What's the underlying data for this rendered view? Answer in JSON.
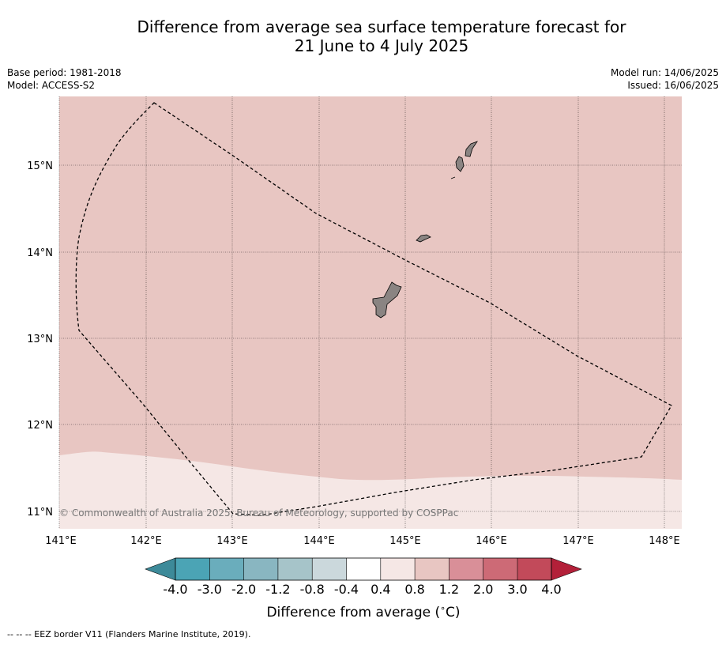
{
  "title": {
    "line1": "Difference from average sea surface temperature forecast for",
    "line2": "21 June to 4 July 2025"
  },
  "header_left": {
    "base_period": "Base period: 1981-2018",
    "model": "Model: ACCESS-S2"
  },
  "header_right": {
    "model_run": "Model run: 14/06/2025",
    "issued": "Issued: 16/06/2025"
  },
  "map": {
    "lon_range": [
      141.0,
      148.2
    ],
    "lat_range": [
      10.8,
      15.8
    ],
    "longitude_ticks": [
      "141°E",
      "142°E",
      "143°E",
      "144°E",
      "145°E",
      "146°E",
      "147°E",
      "148°E"
    ],
    "latitude_ticks": [
      "15°N",
      "14°N",
      "13°N",
      "12°N",
      "11°N"
    ],
    "regions": [
      {
        "category": "0.8 to 1.2",
        "color": "#e8c6c2"
      },
      {
        "category": "0.4 to 0.8",
        "color": "#f5e7e5"
      }
    ],
    "islands": [
      "Guam",
      "Rota",
      "Tinian",
      "Saipan"
    ],
    "land_color": "#8a8482",
    "copyright": "© Commonwealth of Australia 2025, Bureau of Meteorology, supported by COSPPac"
  },
  "colorbar": {
    "tick_labels": [
      "-4.0",
      "-3.0",
      "-2.0",
      "-1.2",
      "-0.8",
      "-0.4",
      "0.4",
      "0.8",
      "1.2",
      "2.0",
      "3.0",
      "4.0"
    ],
    "colors": [
      "#3d8a99",
      "#4ba4b5",
      "#6aadbc",
      "#89b6c1",
      "#a6c4c9",
      "#cbd8dc",
      "#ffffff",
      "#f5e7e5",
      "#e8c6c2",
      "#d98f98",
      "#cd6a76",
      "#c24a5a",
      "#b32039"
    ],
    "label": "Difference from average ($^\\circ$C)",
    "label_display": "Difference from average (",
    "label_unit": "C)"
  },
  "footnote": "--  --  -- EEZ border V11 (Flanders Marine Institute, 2019)."
}
